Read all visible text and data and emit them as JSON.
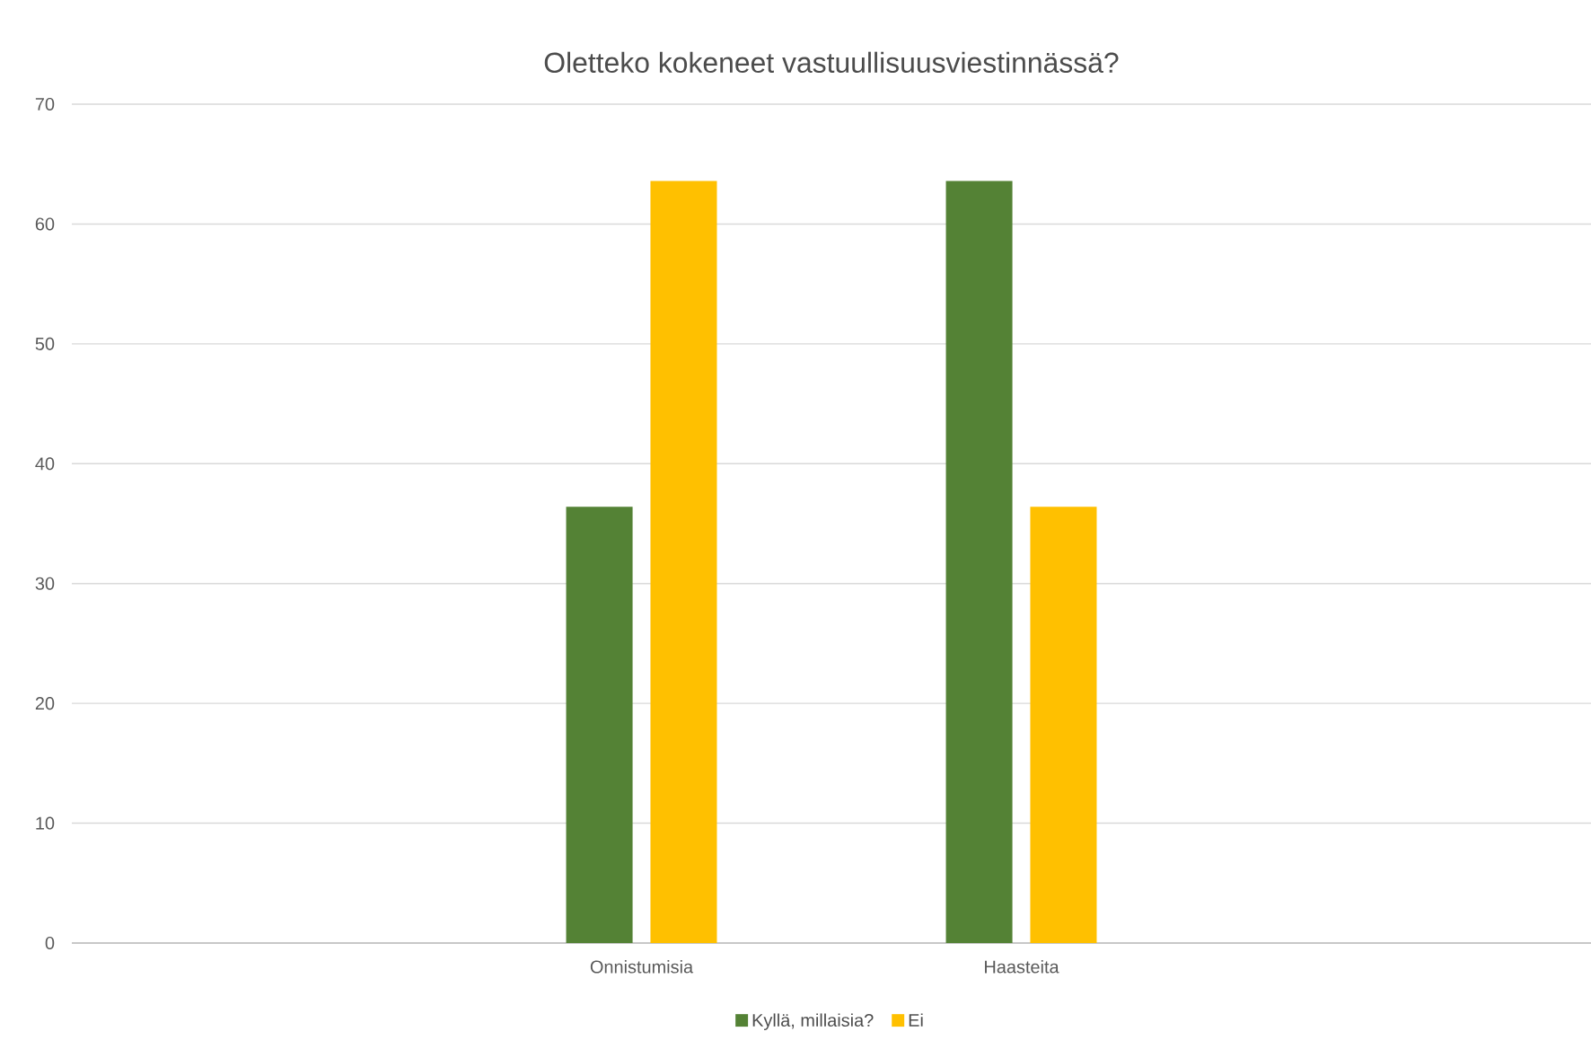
{
  "chart_data": {
    "type": "bar",
    "title": "Oletteko kokeneet vastuullisuusviestinnässä?",
    "categories": [
      null,
      "Onnistumisia",
      "Haasteita",
      null
    ],
    "series": [
      {
        "name": "Kyllä, millaisia?",
        "color": "#548235",
        "values": [
          null,
          36.4,
          63.6,
          null
        ]
      },
      {
        "name": "Ei",
        "color": "#ffc000",
        "values": [
          null,
          63.6,
          36.4,
          null
        ]
      }
    ],
    "ylim": [
      0,
      70
    ],
    "yticks": [
      0,
      10,
      20,
      30,
      40,
      50,
      60,
      70
    ],
    "grid": "y",
    "legend": "bottom"
  }
}
